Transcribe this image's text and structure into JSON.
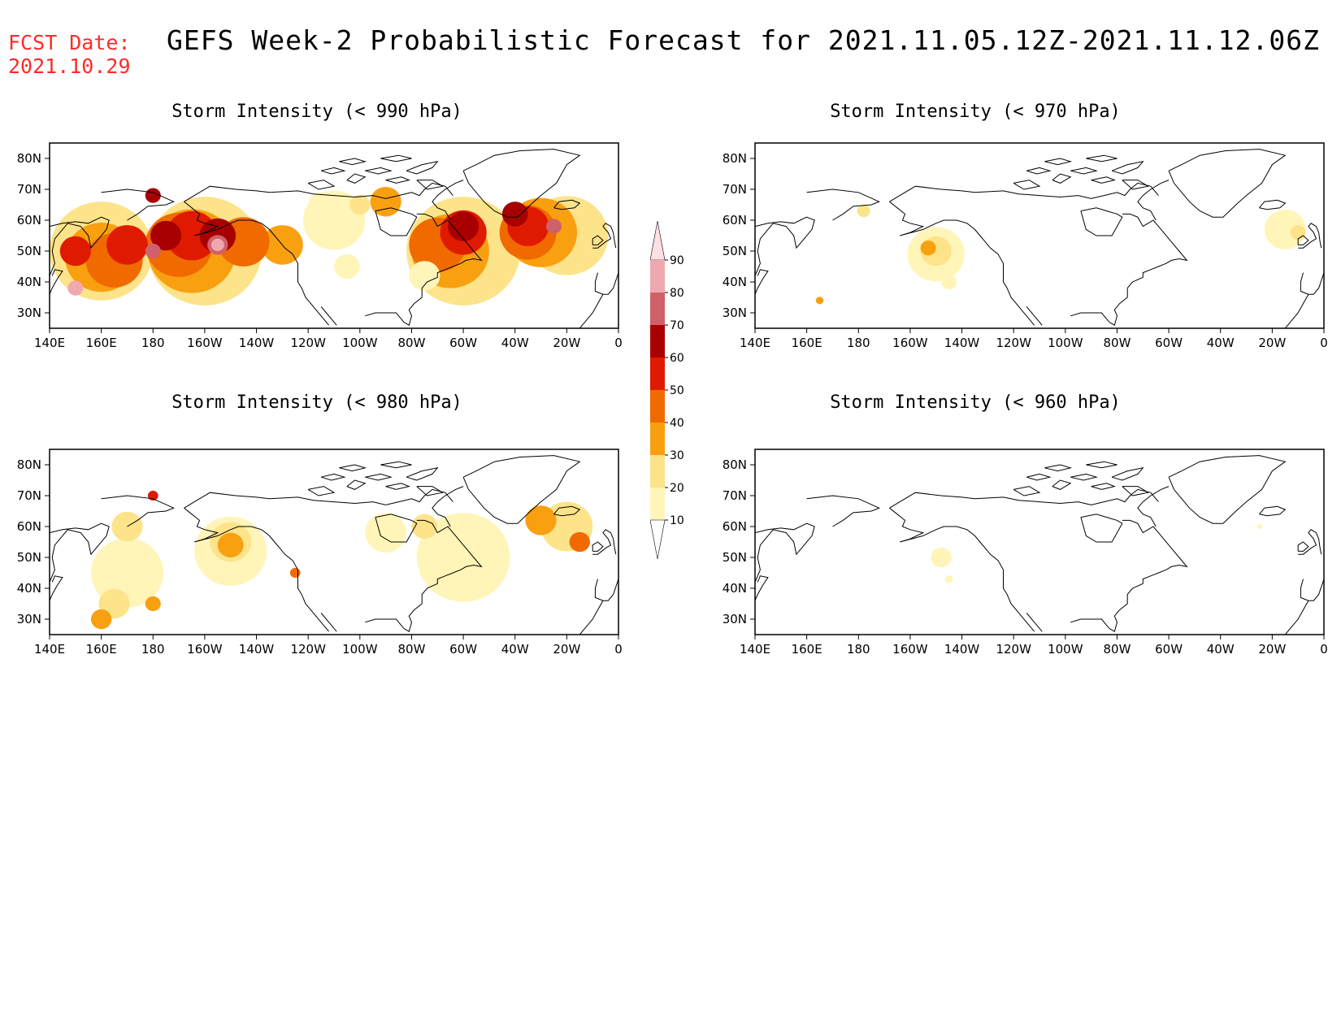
{
  "header": {
    "fcst_label": "FCST Date:",
    "fcst_date": "2021.10.29",
    "title": "GEFS Week-2 Probabilistic Forecast for 2021.11.05.12Z-2021.11.12.06Z"
  },
  "axes": {
    "lat_labels": [
      "80N",
      "70N",
      "60N",
      "50N",
      "40N",
      "30N"
    ],
    "lat_values": [
      80,
      70,
      60,
      50,
      40,
      30
    ],
    "lon_labels": [
      "140E",
      "160E",
      "180",
      "160W",
      "140W",
      "120W",
      "100W",
      "80W",
      "60W",
      "40W",
      "20W",
      "0"
    ],
    "lon_values": [
      140,
      160,
      180,
      200,
      220,
      240,
      260,
      280,
      300,
      320,
      340,
      360
    ],
    "lon_range": [
      140,
      360
    ],
    "lat_range": [
      25,
      85
    ]
  },
  "colorbar": {
    "levels": [
      "10",
      "20",
      "30",
      "40",
      "50",
      "60",
      "70",
      "80",
      "90"
    ],
    "colors": [
      "#ffffff",
      "#fff5b8",
      "#fde38a",
      "#f8a010",
      "#f06a00",
      "#e01a00",
      "#a80000",
      "#d0606a",
      "#f0a8b0",
      "#fde0e2"
    ]
  },
  "panels": [
    {
      "id": "p990",
      "title": "Storm Intensity (< 990 hPa)"
    },
    {
      "id": "p970",
      "title": "Storm Intensity (< 970 hPa)"
    },
    {
      "id": "p980",
      "title": "Storm Intensity (< 980 hPa)"
    },
    {
      "id": "p960",
      "title": "Storm Intensity (< 960 hPa)"
    }
  ]
}
